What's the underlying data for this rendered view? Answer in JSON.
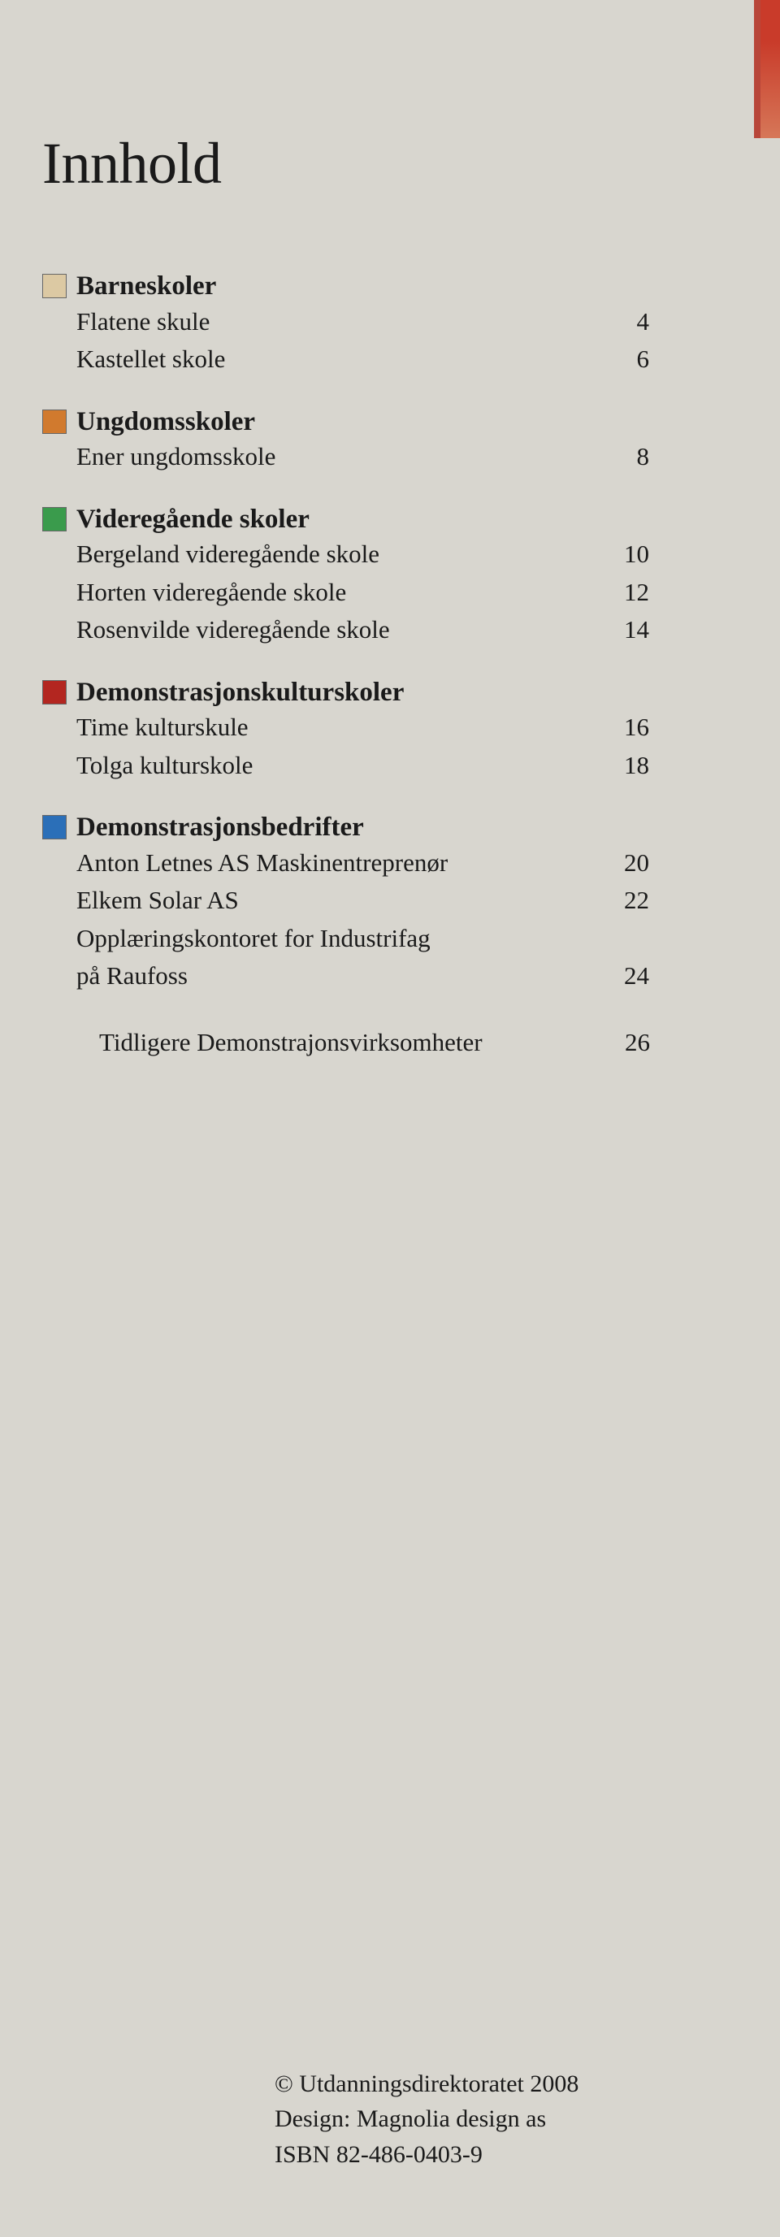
{
  "colors": {
    "page_background": "#d8d6cf",
    "text": "#1a1a1a",
    "stripe_top": "#c93b2a",
    "stripe_bottom": "#d67758",
    "stripe_inner": "#b8463a",
    "marker_border": "#666666",
    "markers": {
      "tan": "#dcc9a3",
      "orange": "#d17a2e",
      "green": "#3a9b4c",
      "red": "#b32620",
      "blue": "#2b6fb8"
    }
  },
  "title": "Innhold",
  "categories": [
    {
      "marker": "tan",
      "heading": "Barneskoler",
      "entries": [
        {
          "label": "Flatene skule",
          "page": "4"
        },
        {
          "label": "Kastellet skole",
          "page": "6"
        }
      ]
    },
    {
      "marker": "orange",
      "heading": "Ungdomsskoler",
      "entries": [
        {
          "label": "Ener ungdomsskole",
          "page": "8"
        }
      ]
    },
    {
      "marker": "green",
      "heading": "Videregående skoler",
      "entries": [
        {
          "label": "Bergeland videregående skole",
          "page": "10"
        },
        {
          "label": "Horten videregående skole",
          "page": "12"
        },
        {
          "label": "Rosenvilde videregående skole",
          "page": "14"
        }
      ]
    },
    {
      "marker": "red",
      "heading": "Demonstrasjonskulturskoler",
      "entries": [
        {
          "label": "Time kulturskule",
          "page": "16"
        },
        {
          "label": "Tolga kulturskole",
          "page": "18"
        }
      ]
    },
    {
      "marker": "blue",
      "heading": "Demonstrasjonsbedrifter",
      "entries": [
        {
          "label": "Anton Letnes AS Maskinentreprenør",
          "page": "20"
        },
        {
          "label": "Elkem Solar AS",
          "page": "22"
        },
        {
          "label": "Opplæringskontoret for Industrifag",
          "page": ""
        },
        {
          "label": "på Raufoss",
          "page": "24"
        }
      ]
    }
  ],
  "previous": {
    "label": "Tidligere Demonstrajonsvirksomheter",
    "page": "26"
  },
  "footer": {
    "line1": "© Utdanningsdirektoratet 2008",
    "line2": "Design: Magnolia design as",
    "line3": "ISBN 82-486-0403-9"
  }
}
